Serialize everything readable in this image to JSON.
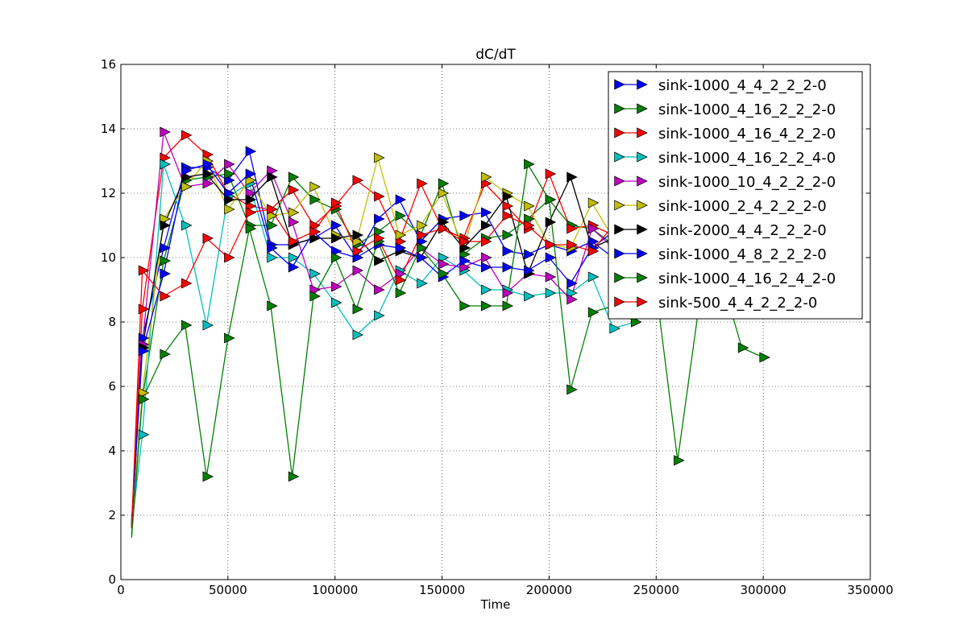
{
  "chart_data": {
    "type": "line",
    "title": "dC/dT",
    "xlabel": "Time",
    "ylabel": "",
    "xlim": [
      0,
      350000
    ],
    "ylim": [
      0,
      16
    ],
    "xticks": [
      0,
      50000,
      100000,
      150000,
      200000,
      250000,
      300000,
      350000
    ],
    "xtick_labels": [
      "0",
      "50000",
      "100000",
      "150000",
      "200000",
      "250000",
      "300000",
      "350000"
    ],
    "yticks": [
      0,
      2,
      4,
      6,
      8,
      10,
      12,
      14,
      16
    ],
    "ytick_labels": [
      "0",
      "2",
      "4",
      "6",
      "8",
      "10",
      "12",
      "14",
      "16"
    ],
    "grid": true,
    "legend_position": "top-right",
    "marker": "triangle-right",
    "series": [
      {
        "name": "sink-1000_4_4_2_2_2-0",
        "color": "#0000ff",
        "x": [
          5000,
          10000,
          20000,
          30000,
          40000,
          50000,
          60000,
          70000,
          80000,
          90000,
          100000,
          110000,
          120000,
          130000,
          140000,
          150000,
          160000,
          170000,
          180000,
          190000,
          200000,
          210000,
          220000,
          230000,
          240000
        ],
        "y": [
          1.8,
          7.5,
          10.3,
          12.8,
          12.8,
          12.4,
          13.3,
          10.4,
          10.4,
          10.6,
          11.0,
          10.0,
          11.2,
          11.8,
          10.5,
          11.2,
          11.3,
          11.4,
          10.2,
          10.1,
          10.4,
          10.2,
          10.5,
          10.0,
          10.3
        ]
      },
      {
        "name": "sink-1000_4_16_2_2_2-0",
        "color": "#008000",
        "x": [
          5000,
          10000,
          20000,
          30000,
          40000,
          50000,
          60000,
          70000,
          80000,
          90000,
          100000,
          110000,
          120000,
          130000,
          140000,
          150000,
          160000,
          170000,
          180000,
          190000,
          200000,
          210000,
          220000,
          230000,
          240000
        ],
        "y": [
          1.4,
          5.6,
          9.9,
          12.4,
          12.5,
          12.6,
          11.0,
          11.0,
          12.5,
          11.8,
          11.5,
          10.4,
          10.8,
          11.3,
          10.7,
          12.3,
          10.1,
          10.6,
          10.7,
          11.2,
          11.8,
          11.0,
          10.9,
          10.4,
          10.2
        ]
      },
      {
        "name": "sink-1000_4_16_4_2_2-0",
        "color": "#ff0000",
        "x": [
          5000,
          10000,
          20000,
          30000,
          40000,
          50000,
          60000,
          70000,
          80000,
          90000,
          100000,
          110000,
          120000,
          130000,
          140000,
          150000,
          160000,
          170000,
          180000,
          190000,
          200000,
          210000,
          220000,
          230000,
          240000
        ],
        "y": [
          1.6,
          8.4,
          13.1,
          13.8,
          13.2,
          12.0,
          11.6,
          11.5,
          12.1,
          11.0,
          11.6,
          12.4,
          11.9,
          10.5,
          12.3,
          10.9,
          10.6,
          12.3,
          11.6,
          10.9,
          12.6,
          10.9,
          11.0,
          10.7,
          10.8
        ]
      },
      {
        "name": "sink-1000_4_16_2_2_4-0",
        "color": "#00bfbf",
        "x": [
          5000,
          10000,
          20000,
          30000,
          40000,
          50000,
          60000,
          70000,
          80000,
          90000,
          100000,
          110000,
          120000,
          130000,
          140000,
          150000,
          160000,
          170000,
          180000,
          190000,
          200000,
          210000,
          220000,
          230000,
          240000
        ],
        "y": [
          1.6,
          4.5,
          12.9,
          11.0,
          7.9,
          11.9,
          12.3,
          10.0,
          10.0,
          9.5,
          8.6,
          7.6,
          8.2,
          9.6,
          9.2,
          10.0,
          9.6,
          9.0,
          9.0,
          8.8,
          8.9,
          8.9,
          9.4,
          7.8,
          8.0
        ]
      },
      {
        "name": "sink-1000_10_4_2_2_2-0",
        "color": "#bf00bf",
        "x": [
          5000,
          10000,
          20000,
          30000,
          40000,
          50000,
          60000,
          70000,
          80000,
          90000,
          100000,
          110000,
          120000,
          130000,
          140000,
          150000,
          160000,
          170000,
          180000,
          190000,
          200000,
          210000,
          220000,
          230000,
          240000
        ],
        "y": [
          1.6,
          7.3,
          13.9,
          12.2,
          12.3,
          12.9,
          12.0,
          12.7,
          11.1,
          9.0,
          9.1,
          9.6,
          9.0,
          9.5,
          10.3,
          9.8,
          9.7,
          10.0,
          8.9,
          9.5,
          9.4,
          8.7,
          10.9,
          10.3,
          10.4
        ]
      },
      {
        "name": "sink-1000_2_4_2_2_2-0",
        "color": "#bfbf00",
        "x": [
          5000,
          10000,
          20000,
          30000,
          40000,
          50000,
          60000,
          70000,
          80000,
          90000,
          100000,
          110000,
          120000,
          130000,
          140000,
          150000,
          160000,
          170000,
          180000,
          190000,
          200000,
          210000,
          220000,
          230000,
          240000
        ],
        "y": [
          1.7,
          5.8,
          11.2,
          12.2,
          13.0,
          11.5,
          12.4,
          11.3,
          11.4,
          12.2,
          10.7,
          10.5,
          13.1,
          10.7,
          11.0,
          12.0,
          10.3,
          12.5,
          12.0,
          11.6,
          10.4,
          10.3,
          11.7,
          10.6,
          10.5
        ]
      },
      {
        "name": "sink-2000_4_4_2_2_2-0",
        "color": "#000000",
        "x": [
          5000,
          10000,
          20000,
          30000,
          40000,
          50000,
          60000,
          70000,
          80000,
          90000,
          100000,
          110000,
          120000,
          130000,
          140000,
          150000,
          160000,
          170000,
          180000,
          190000,
          200000,
          210000,
          220000,
          230000,
          240000
        ],
        "y": [
          1.7,
          7.2,
          11.0,
          12.5,
          12.6,
          11.8,
          11.8,
          12.5,
          10.4,
          10.6,
          10.6,
          10.7,
          9.9,
          10.2,
          10.0,
          11.1,
          10.3,
          11.0,
          11.9,
          9.5,
          11.1,
          12.5,
          10.3,
          10.6,
          12.5
        ]
      },
      {
        "name": "sink-1000_4_8_2_2_2-0",
        "color": "#0000ff",
        "x": [
          5000,
          10000,
          20000,
          30000,
          40000,
          50000,
          60000,
          70000,
          80000,
          90000,
          100000,
          110000,
          120000,
          130000,
          140000,
          150000,
          160000,
          170000,
          180000,
          190000,
          200000,
          210000,
          220000,
          230000,
          240000
        ],
        "y": [
          1.7,
          7.1,
          9.5,
          12.7,
          12.9,
          12.0,
          12.6,
          10.3,
          9.7,
          10.8,
          10.2,
          10.0,
          10.4,
          10.3,
          10.0,
          9.4,
          9.9,
          9.7,
          9.7,
          9.6,
          10.0,
          9.2,
          10.3,
          10.8,
          10.4
        ]
      },
      {
        "name": "sink-1000_4_16_2_4_2-0",
        "color": "#008000",
        "x": [
          5000,
          10000,
          20000,
          30000,
          40000,
          50000,
          60000,
          70000,
          80000,
          90000,
          100000,
          110000,
          120000,
          130000,
          140000,
          150000,
          160000,
          170000,
          180000,
          190000,
          200000,
          210000,
          220000,
          230000,
          240000,
          250000,
          260000,
          270000,
          280000,
          290000,
          300000
        ],
        "y": [
          1.3,
          5.6,
          7.0,
          7.9,
          3.2,
          7.5,
          10.9,
          8.5,
          3.2,
          8.8,
          10.0,
          8.4,
          10.5,
          8.9,
          10.3,
          9.5,
          8.5,
          8.5,
          8.5,
          12.9,
          11.8,
          5.9,
          8.3,
          8.5,
          8.0,
          9.0,
          3.7,
          8.5,
          9.5,
          7.2,
          6.9
        ]
      },
      {
        "name": "sink-500_4_4_2_2_2-0",
        "color": "#ff0000",
        "x": [
          5000,
          10000,
          20000,
          30000,
          40000,
          50000,
          60000,
          70000,
          80000,
          90000,
          100000,
          110000,
          120000,
          130000,
          140000,
          150000,
          160000,
          170000,
          180000,
          190000,
          200000,
          210000,
          220000,
          230000,
          240000
        ],
        "y": [
          1.6,
          9.6,
          8.8,
          9.2,
          10.6,
          10.0,
          11.4,
          11.5,
          10.5,
          10.8,
          11.7,
          10.2,
          10.6,
          9.3,
          10.7,
          10.9,
          10.5,
          10.5,
          11.3,
          11.0,
          10.4,
          10.4,
          10.2,
          11.0,
          10.5
        ]
      }
    ]
  }
}
